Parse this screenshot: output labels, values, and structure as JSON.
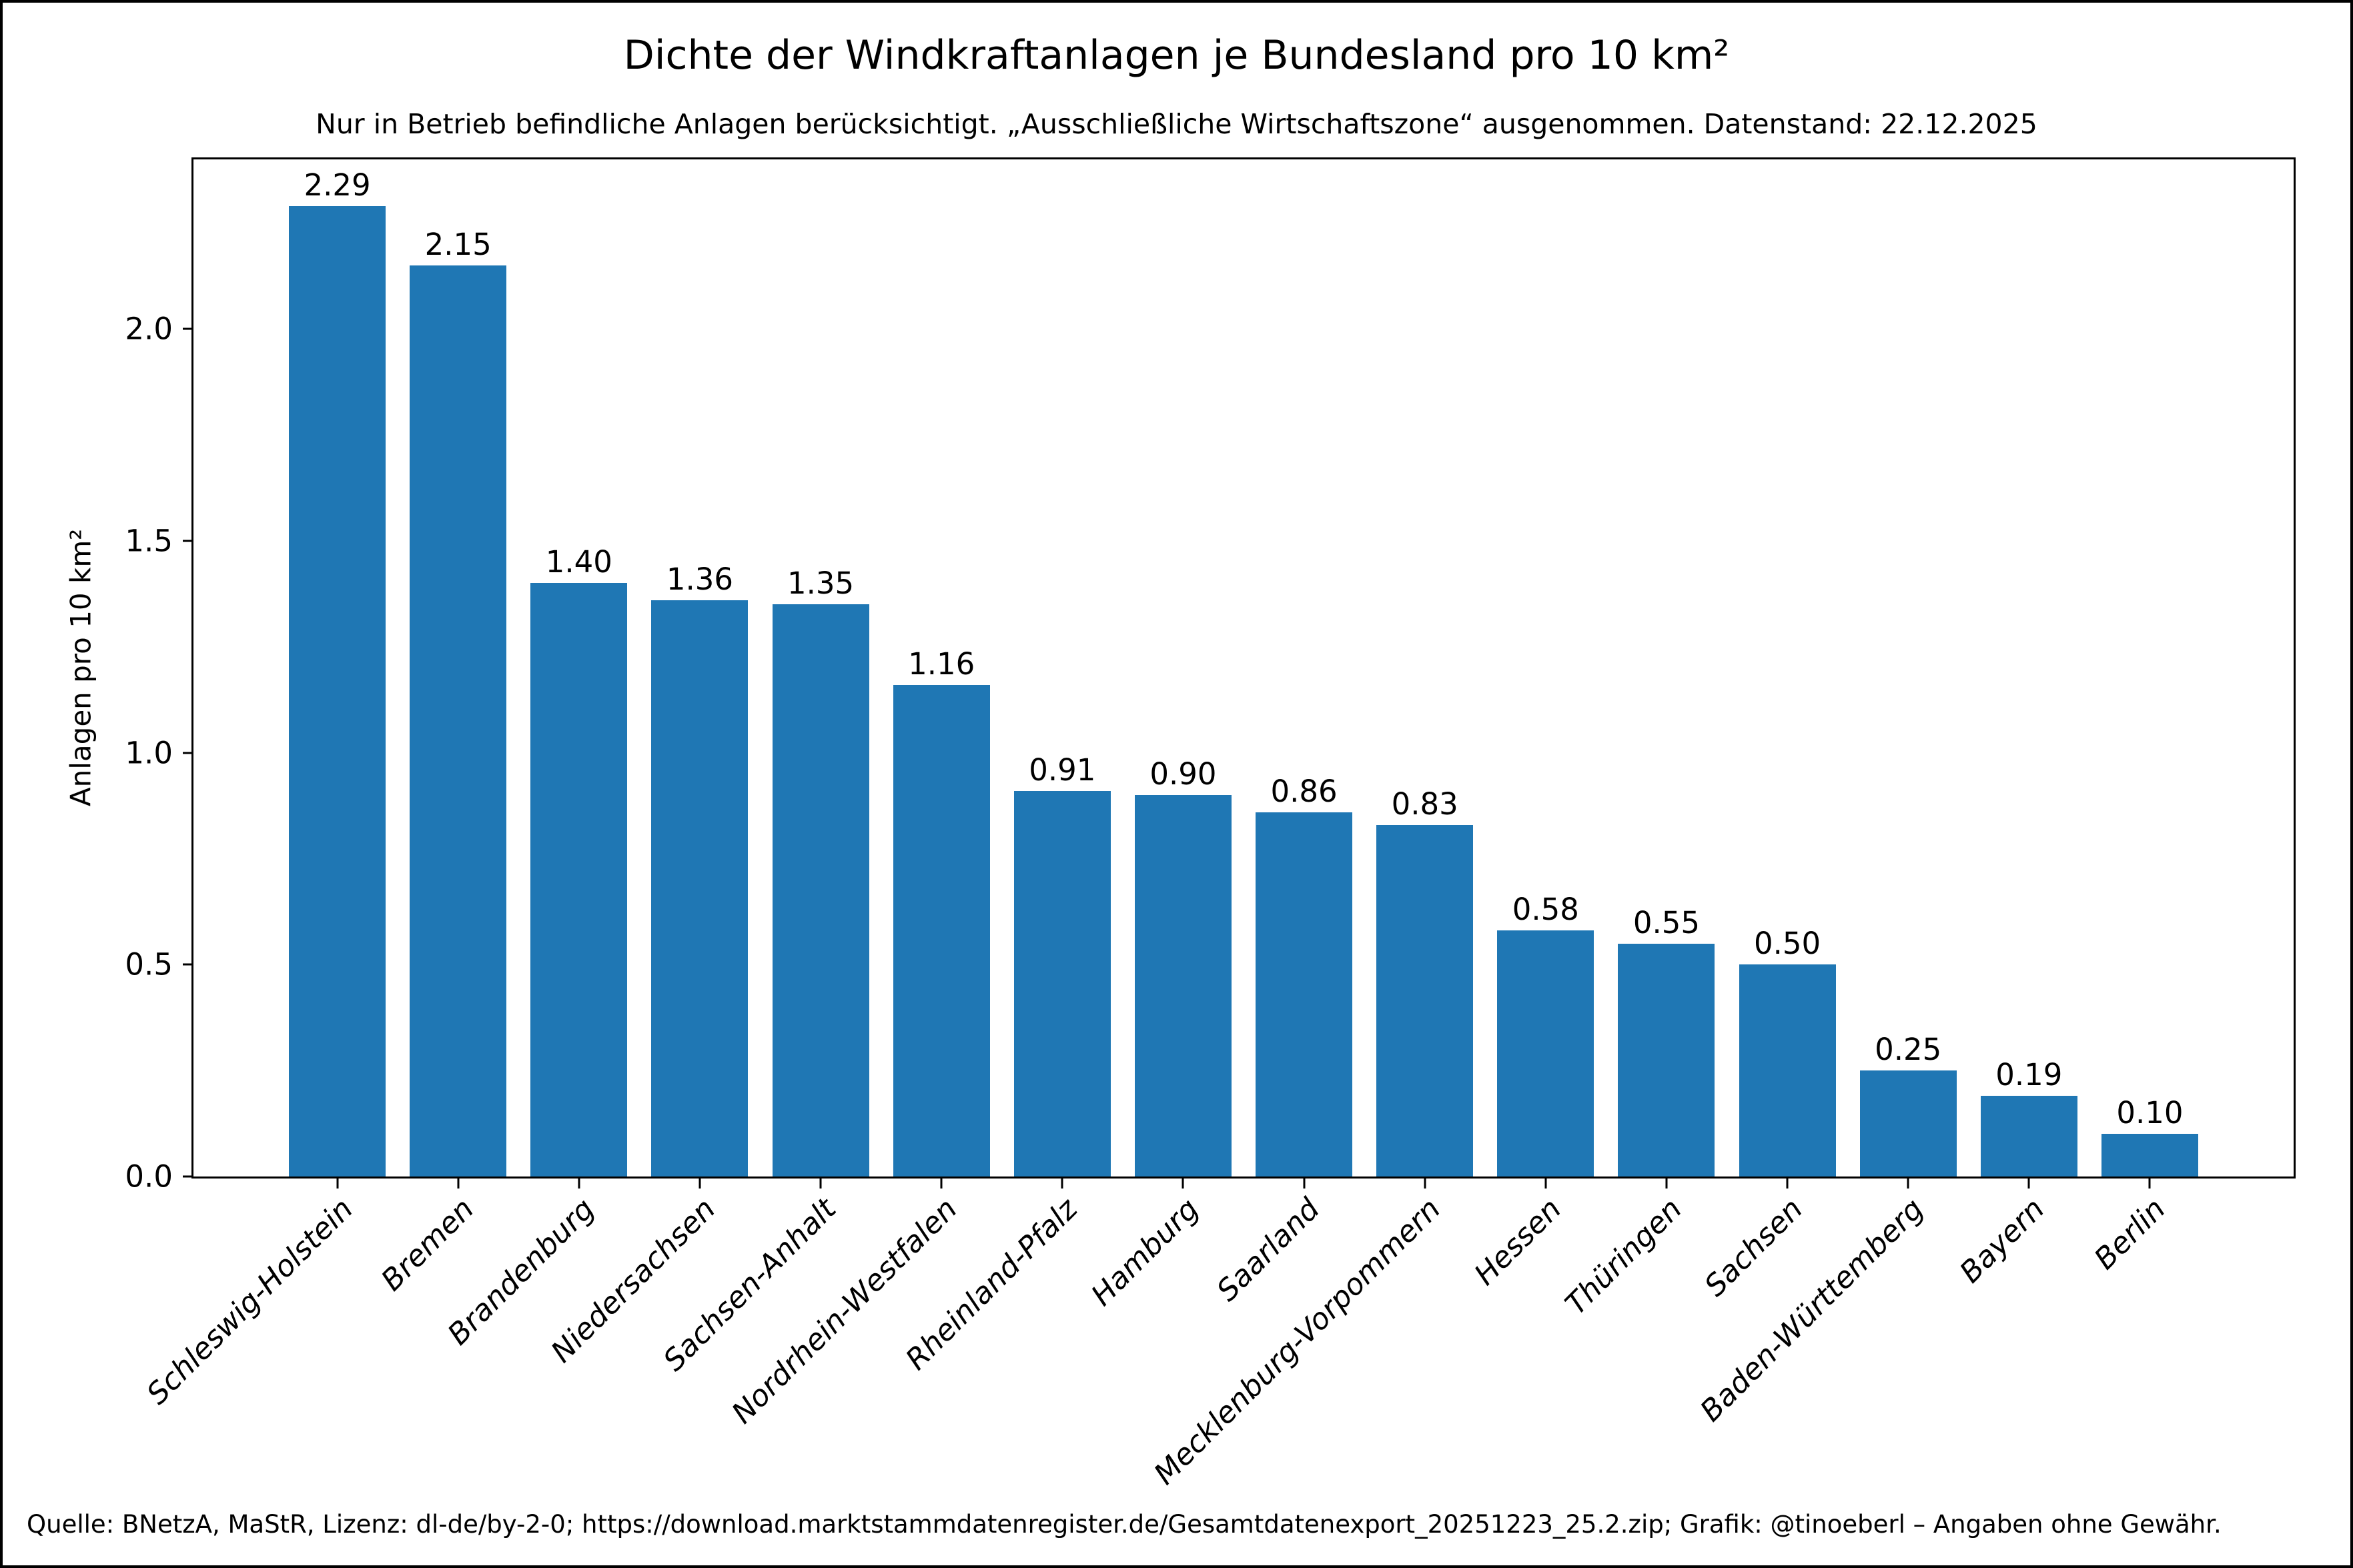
{
  "chart_data": {
    "type": "bar",
    "title": "Dichte der Windkraftanlagen je Bundesland pro 10 km²",
    "subtitle": "Nur in Betrieb befindliche Anlagen berücksichtigt. „Ausschließliche Wirtschaftszone“ ausgenommen. Datenstand: 22.12.2025",
    "xlabel": "",
    "ylabel": "Anlagen pro 10 km²",
    "categories": [
      "Schleswig-Holstein",
      "Bremen",
      "Brandenburg",
      "Niedersachsen",
      "Sachsen-Anhalt",
      "Nordrhein-Westfalen",
      "Rheinland-Pfalz",
      "Hamburg",
      "Saarland",
      "Mecklenburg-Vorpommern",
      "Hessen",
      "Thüringen",
      "Sachsen",
      "Baden-Württemberg",
      "Bayern",
      "Berlin"
    ],
    "values": [
      2.29,
      2.15,
      1.4,
      1.36,
      1.35,
      1.16,
      0.91,
      0.9,
      0.86,
      0.83,
      0.58,
      0.55,
      0.5,
      0.25,
      0.19,
      0.1
    ],
    "value_labels": [
      "2.29",
      "2.15",
      "1.40",
      "1.36",
      "1.35",
      "1.16",
      "0.91",
      "0.90",
      "0.86",
      "0.83",
      "0.58",
      "0.55",
      "0.50",
      "0.25",
      "0.19",
      "0.10"
    ],
    "y_tick_labels": [
      "0.0",
      "0.5",
      "1.0",
      "1.5",
      "2.0"
    ],
    "y_tick_values": [
      0.0,
      0.5,
      1.0,
      1.5,
      2.0
    ],
    "ylim": [
      0,
      2.4
    ],
    "bar_color": "#1f77b4",
    "axis_color": "#000000",
    "grid": false,
    "legend_position": "none",
    "x_label_rotation_deg": 45,
    "x_label_style": "italic"
  },
  "footer": {
    "text": "Quelle: BNetzA, MaStR, Lizenz: dl-de/by-2-0; https://download.marktstammdatenregister.de/Gesamtdatenexport_20251223_25.2.zip; Grafik: @tinoeberl – Angaben ohne Gewähr."
  }
}
